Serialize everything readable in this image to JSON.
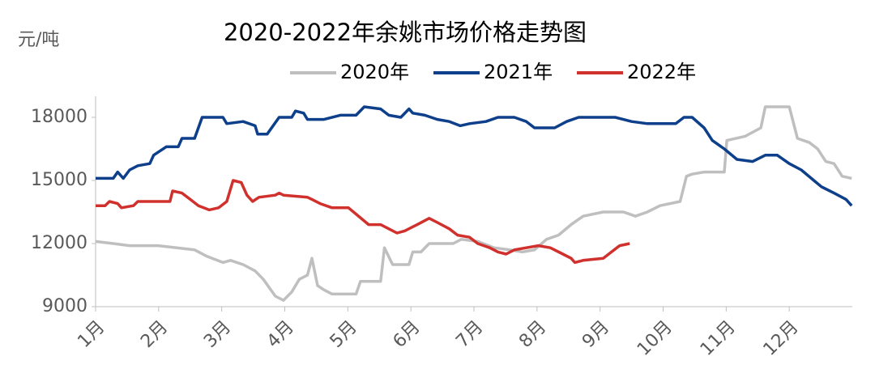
{
  "chart_data": {
    "type": "line",
    "title": "2020-2022年余姚市场价格走势图",
    "y_label": "元/吨",
    "xlim": [
      0,
      12
    ],
    "xticks": [
      {
        "value": 0,
        "label": "1月"
      },
      {
        "value": 1,
        "label": "2月"
      },
      {
        "value": 2,
        "label": "3月"
      },
      {
        "value": 3,
        "label": "4月"
      },
      {
        "value": 4,
        "label": "5月"
      },
      {
        "value": 5,
        "label": "6月"
      },
      {
        "value": 6,
        "label": "7月"
      },
      {
        "value": 7,
        "label": "8月"
      },
      {
        "value": 8,
        "label": "9月"
      },
      {
        "value": 9,
        "label": "10月"
      },
      {
        "value": 10,
        "label": "11月"
      },
      {
        "value": 11,
        "label": "12月"
      }
    ],
    "ylim": [
      9000,
      19000
    ],
    "yticks": [
      9000,
      12000,
      15000,
      18000
    ],
    "legend": "top",
    "series": [
      {
        "name": "2020年",
        "color": "#bfbfbf",
        "x": [
          0,
          0.28,
          0.54,
          0.99,
          1.57,
          1.76,
          2.02,
          2.14,
          2.34,
          2.53,
          2.66,
          2.85,
          2.98,
          3.11,
          3.23,
          3.36,
          3.43,
          3.52,
          3.62,
          3.75,
          4.13,
          4.2,
          4.52,
          4.58,
          4.71,
          4.97,
          5.03,
          5.16,
          5.29,
          5.67,
          5.8,
          6.06,
          6.32,
          6.57,
          6.77,
          6.96,
          7.15,
          7.34,
          7.54,
          7.73,
          8.05,
          8.37,
          8.56,
          8.75,
          8.95,
          9.27,
          9.37,
          9.46,
          9.65,
          9.97,
          10.01,
          10.3,
          10.55,
          10.62,
          11.0,
          11.13,
          11.32,
          11.45,
          11.58,
          11.71,
          11.84,
          11.99
        ],
        "values": [
          12100,
          12000,
          11900,
          11900,
          11700,
          11400,
          11100,
          11200,
          11000,
          10700,
          10300,
          9500,
          9300,
          9700,
          10300,
          10500,
          11300,
          10000,
          9800,
          9600,
          9600,
          10200,
          10200,
          11800,
          11000,
          11000,
          11600,
          11600,
          12000,
          12000,
          12200,
          12100,
          11800,
          11700,
          11600,
          11700,
          12200,
          12400,
          12900,
          13300,
          13500,
          13500,
          13300,
          13500,
          13800,
          14000,
          15200,
          15300,
          15400,
          15400,
          16900,
          17100,
          17500,
          18500,
          18500,
          17000,
          16800,
          16500,
          15900,
          15800,
          15200,
          15100
        ]
      },
      {
        "name": "2021年",
        "color": "#0d3f8a",
        "x": [
          0,
          0.28,
          0.35,
          0.44,
          0.54,
          0.67,
          0.86,
          0.92,
          1.12,
          1.31,
          1.37,
          1.57,
          1.69,
          2.02,
          2.08,
          2.34,
          2.53,
          2.57,
          2.72,
          2.91,
          3.11,
          3.17,
          3.3,
          3.36,
          3.62,
          3.88,
          4.13,
          4.26,
          4.52,
          4.65,
          4.84,
          4.97,
          5.03,
          5.22,
          5.42,
          5.61,
          5.78,
          5.93,
          6.19,
          6.38,
          6.64,
          6.83,
          6.96,
          7.28,
          7.47,
          7.66,
          8.24,
          8.5,
          8.75,
          9.2,
          9.33,
          9.46,
          9.65,
          9.78,
          9.97,
          10.17,
          10.42,
          10.62,
          10.81,
          11.0,
          11.19,
          11.39,
          11.51,
          11.71,
          11.9,
          11.99
        ],
        "values": [
          15100,
          15100,
          15400,
          15100,
          15500,
          15700,
          15800,
          16200,
          16600,
          16600,
          17000,
          17000,
          18000,
          18000,
          17700,
          17800,
          17600,
          17200,
          17200,
          18000,
          18000,
          18300,
          18200,
          17900,
          17900,
          18100,
          18100,
          18500,
          18400,
          18100,
          18000,
          18400,
          18200,
          18100,
          17900,
          17800,
          17600,
          17700,
          17800,
          18000,
          18000,
          17800,
          17500,
          17500,
          17800,
          18000,
          18000,
          17800,
          17700,
          17700,
          18000,
          18000,
          17500,
          16900,
          16500,
          16000,
          15900,
          16200,
          16200,
          15800,
          15500,
          15000,
          14700,
          14400,
          14100,
          13800
        ]
      },
      {
        "name": "2022年",
        "color": "#d0312d",
        "x": [
          0,
          0.15,
          0.22,
          0.35,
          0.41,
          0.6,
          0.67,
          1.18,
          1.22,
          1.37,
          1.5,
          1.63,
          1.8,
          1.95,
          2.08,
          2.18,
          2.31,
          2.4,
          2.49,
          2.59,
          2.85,
          2.91,
          2.98,
          3.36,
          3.43,
          3.56,
          3.75,
          4.01,
          4.13,
          4.33,
          4.52,
          4.65,
          4.78,
          4.9,
          5.1,
          5.29,
          5.42,
          5.61,
          5.74,
          5.93,
          6.06,
          6.25,
          6.38,
          6.51,
          6.64,
          6.83,
          7.02,
          7.21,
          7.41,
          7.54,
          7.6,
          7.73,
          8.05,
          8.18,
          8.31,
          8.47
        ],
        "values": [
          13800,
          13800,
          14000,
          13900,
          13700,
          13800,
          14000,
          14000,
          14500,
          14400,
          14100,
          13800,
          13600,
          13700,
          14000,
          15000,
          14900,
          14300,
          14000,
          14200,
          14300,
          14400,
          14300,
          14200,
          14100,
          13900,
          13700,
          13700,
          13400,
          12900,
          12900,
          12700,
          12500,
          12600,
          12900,
          13200,
          13000,
          12700,
          12400,
          12300,
          12000,
          11800,
          11600,
          11500,
          11700,
          11800,
          11900,
          11800,
          11500,
          11300,
          11100,
          11200,
          11300,
          11600,
          11900,
          12000
        ]
      }
    ]
  }
}
